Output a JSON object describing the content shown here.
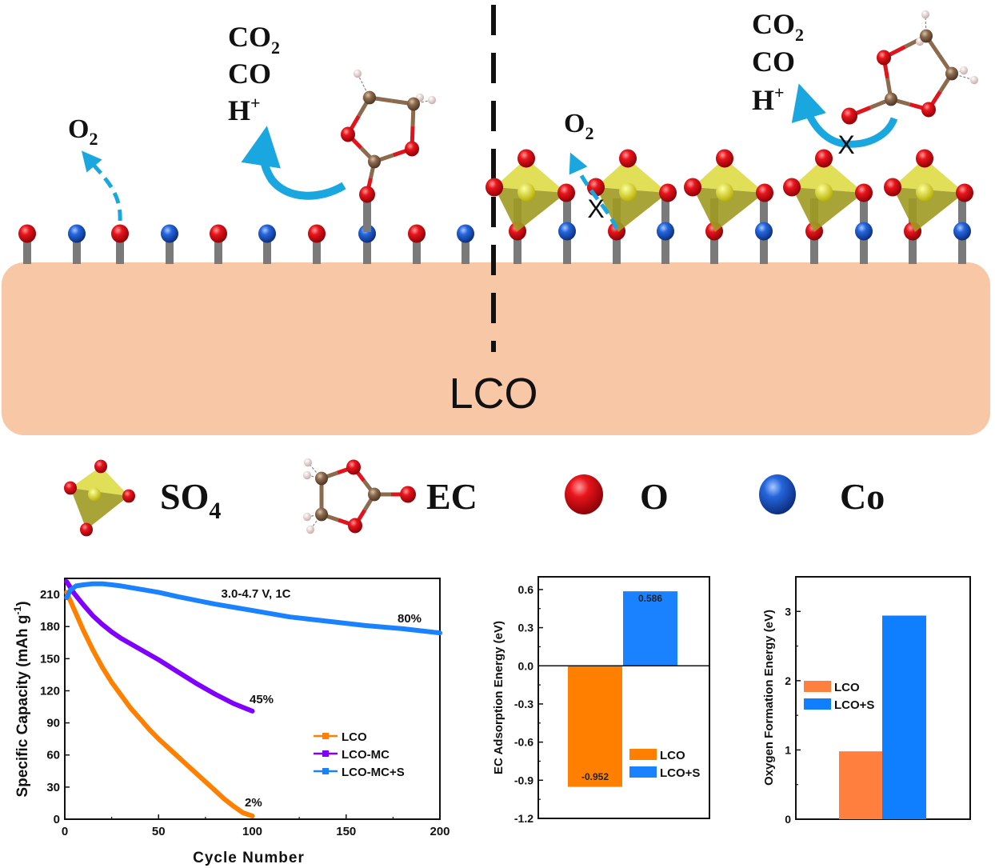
{
  "schematic": {
    "substrate_label": "LCO",
    "left": {
      "o2_label": "O",
      "o2_sub": "2",
      "products": [
        {
          "text": "CO",
          "sub": "2",
          "sup": ""
        },
        {
          "text": "CO",
          "sub": "",
          "sup": ""
        },
        {
          "text": "H",
          "sub": "",
          "sup": "+"
        }
      ],
      "surface_atoms": [
        "O",
        "Co",
        "O",
        "Co",
        "O",
        "Co",
        "O",
        "Co",
        "O",
        "Co"
      ]
    },
    "right": {
      "o2_label": "O",
      "o2_sub": "2",
      "products": [
        {
          "text": "CO",
          "sub": "2",
          "sup": ""
        },
        {
          "text": "CO",
          "sub": "",
          "sup": ""
        },
        {
          "text": "H",
          "sub": "",
          "sup": "+"
        }
      ],
      "blocked_mark": "X",
      "surface_atoms": [
        "O",
        "Co",
        "O",
        "Co",
        "O",
        "Co",
        "O",
        "Co",
        "O",
        "Co"
      ],
      "so4_count": 5
    },
    "colors": {
      "substrate": "#f7c7a6",
      "oxygen": "#e0141c",
      "cobalt": "#1e5bd6",
      "carbon": "#8b6a4e",
      "hydrogen": "#f0d8d8",
      "sulfate": "#c9c42a",
      "arrow": "#1aa7e0",
      "stick": "#7a7a7a"
    }
  },
  "legend": {
    "items": [
      {
        "key": "so4",
        "label": "SO",
        "sub": "4"
      },
      {
        "key": "ec",
        "label": "EC",
        "sub": ""
      },
      {
        "key": "o",
        "label": "O",
        "sub": ""
      },
      {
        "key": "co",
        "label": "Co",
        "sub": ""
      }
    ]
  },
  "chart_data": [
    {
      "type": "line",
      "title": "",
      "annotation": "3.0-4.7 V, 1C",
      "xlabel": "Cycle Number",
      "ylabel": "Specific Capacity (mAh g",
      "ylabel_sup": "-1",
      "ylabel_end": ")",
      "xlim": [
        0,
        200
      ],
      "ylim": [
        0,
        225
      ],
      "xticks": [
        0,
        50,
        100,
        150,
        200
      ],
      "yticks": [
        0,
        30,
        60,
        90,
        120,
        150,
        180,
        210
      ],
      "legend": "center-right",
      "series": [
        {
          "name": "LCO",
          "color": "#ff8000",
          "retention_label": "2%",
          "x": [
            1,
            5,
            10,
            15,
            20,
            25,
            30,
            35,
            40,
            45,
            50,
            55,
            60,
            65,
            70,
            75,
            80,
            85,
            90,
            95,
            100
          ],
          "y": [
            212,
            196,
            176,
            158,
            142,
            128,
            116,
            104,
            94,
            84,
            75,
            67,
            59,
            51,
            43,
            35,
            27,
            19,
            12,
            6,
            3
          ]
        },
        {
          "name": "LCO-MC",
          "color": "#8000ff",
          "retention_label": "45%",
          "x": [
            1,
            5,
            10,
            15,
            20,
            25,
            30,
            40,
            50,
            60,
            70,
            80,
            90,
            100
          ],
          "y": [
            222,
            211,
            200,
            190,
            182,
            175,
            169,
            159,
            149,
            138,
            127,
            117,
            108,
            101
          ]
        },
        {
          "name": "LCO-MC+S",
          "color": "#1a82ff",
          "retention_label": "80%",
          "x": [
            1,
            3,
            6,
            10,
            15,
            20,
            25,
            30,
            40,
            50,
            60,
            80,
            100,
            120,
            140,
            160,
            180,
            200
          ],
          "y": [
            207,
            214,
            218,
            219,
            220,
            220,
            219,
            218,
            215,
            212,
            208,
            201,
            195,
            189,
            185,
            181,
            178,
            174
          ]
        }
      ]
    },
    {
      "type": "bar",
      "title": "",
      "xlabel": "",
      "ylabel": "EC Adsorption Energy (eV)",
      "ylim": [
        -1.2,
        0.7
      ],
      "yticks": [
        -1.2,
        -0.9,
        -0.6,
        -0.3,
        0.0,
        0.3,
        0.6
      ],
      "ytick_labels": [
        "-1.2",
        "-0.9",
        "-0.6",
        "-0.3",
        "0.0",
        "0.3",
        "0.6"
      ],
      "legend": "bottom-right",
      "categories": [
        "LCO",
        "LCO+S"
      ],
      "values": [
        -0.952,
        0.586
      ],
      "value_labels": [
        "-0.952",
        "0.586"
      ],
      "colors": [
        "#ff8000",
        "#1a82ff"
      ]
    },
    {
      "type": "bar",
      "title": "",
      "xlabel": "",
      "ylabel": "Oxygen Formation Energy (eV)",
      "ylim": [
        0,
        3.5
      ],
      "yticks": [
        0,
        1,
        2,
        3
      ],
      "ytick_labels": [
        "0",
        "1",
        "2",
        "3"
      ],
      "legend": "center-left",
      "categories": [
        "LCO",
        "LCO+S"
      ],
      "values": [
        0.98,
        2.94
      ],
      "colors": [
        "#ff7f3f",
        "#0f7fff"
      ]
    }
  ]
}
